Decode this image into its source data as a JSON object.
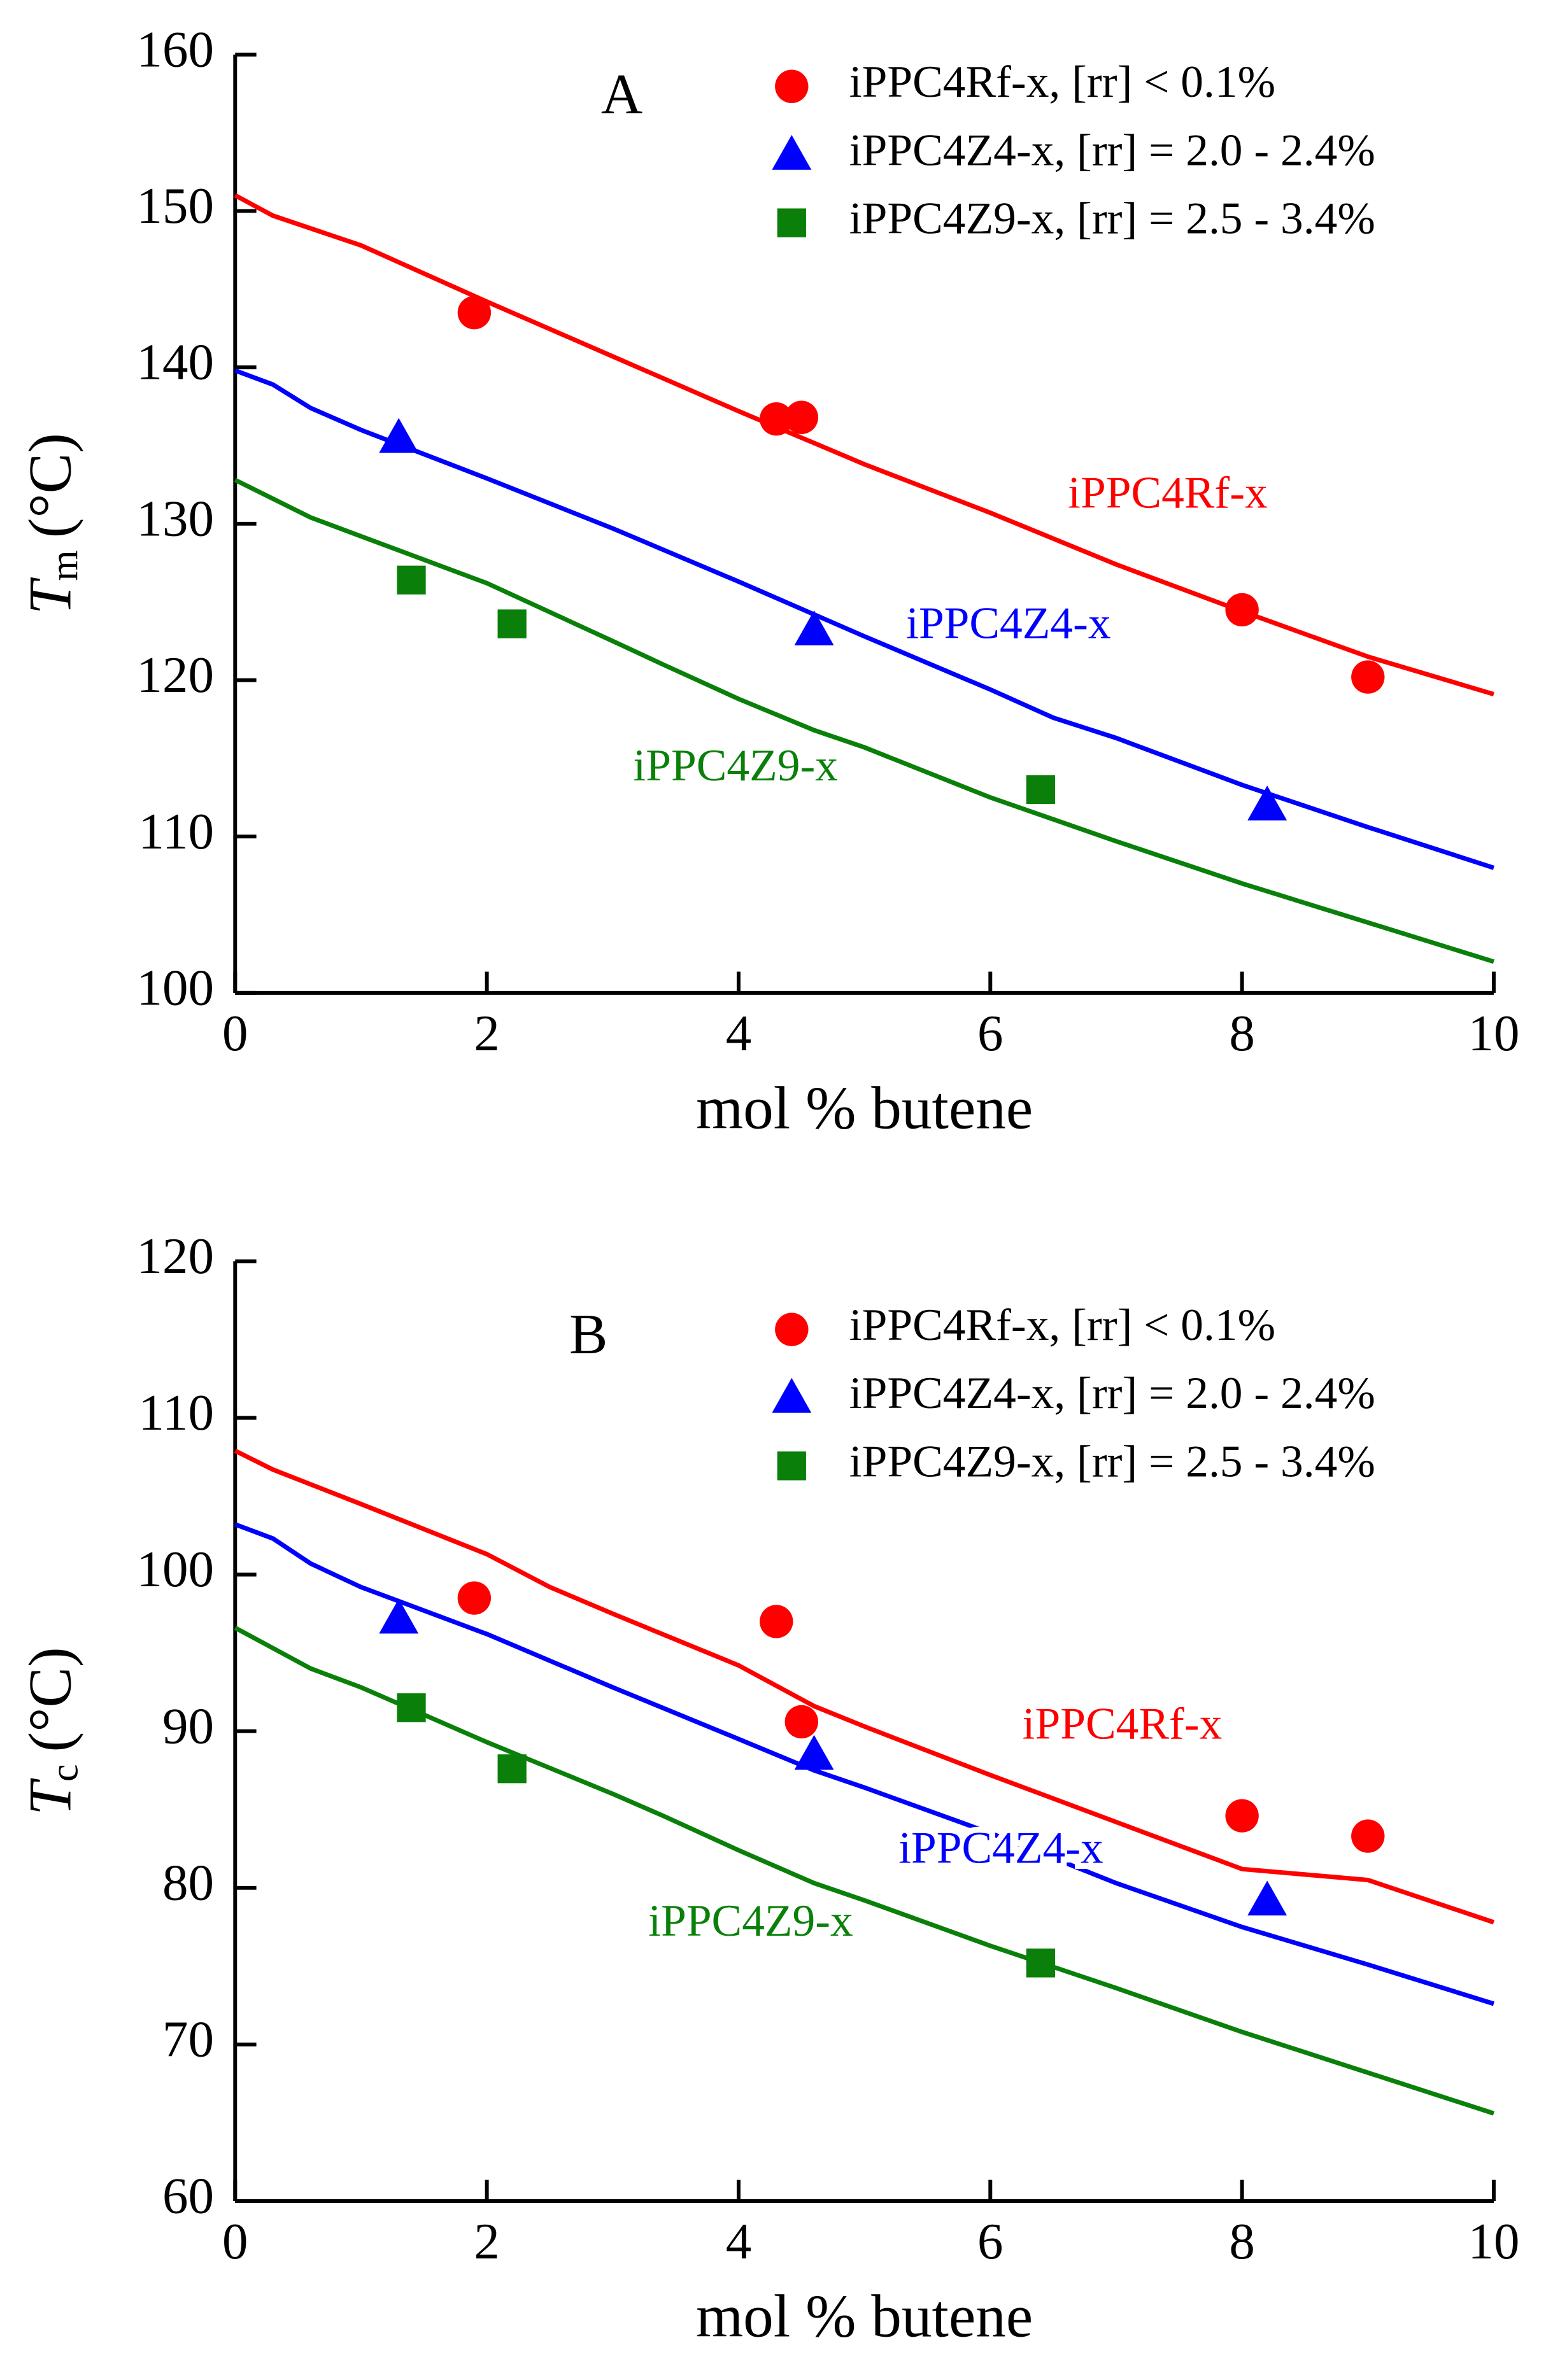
{
  "chart_data": [
    {
      "type": "scatter",
      "panel_label": "A",
      "xlabel": "mol % butene",
      "ylabel": "T",
      "ylabel_subscript": "m",
      "ylabel_unit": "(°C)",
      "xlim": [
        0,
        10
      ],
      "xticks": [
        0,
        2,
        4,
        6,
        8,
        10
      ],
      "ylim": [
        100,
        160
      ],
      "yticks": [
        100,
        110,
        120,
        130,
        140,
        150,
        160
      ],
      "legend": "top-right",
      "series": [
        {
          "name": "iPPC4Rf-x, [rr] < 0.1%",
          "color": "#ff0000",
          "marker": "circle",
          "x": [
            1.9,
            4.3,
            4.5,
            8.0,
            9.0
          ],
          "values": [
            143.5,
            136.7,
            136.8,
            124.5,
            120.2
          ]
        },
        {
          "name": "iPPC4Z4-x, [rr] = 2.0 - 2.4%",
          "color": "#0000ff",
          "marker": "triangle",
          "x": [
            1.3,
            4.6,
            8.2
          ],
          "values": [
            135.5,
            123.2,
            112
          ]
        },
        {
          "name": "iPPC4Z9-x, [rr] = 2.5 - 3.4%",
          "color": "#0a800a",
          "marker": "square",
          "x": [
            1.4,
            2.2,
            6.4
          ],
          "values": [
            126.4,
            123.6,
            113
          ]
        }
      ],
      "fit_lines": [
        {
          "label": "iPPC4Rf-x",
          "color": "#ff0000",
          "x": [
            0,
            0.3,
            1,
            2,
            3,
            4,
            5,
            6,
            7,
            8,
            9,
            10
          ],
          "values": [
            151,
            149.7,
            147.8,
            144.2,
            140.7,
            137.2,
            133.8,
            130.7,
            127.4,
            124.4,
            121.5,
            119.1
          ]
        },
        {
          "label": "iPPC4Z4-x",
          "color": "#0000ff",
          "x": [
            0,
            0.3,
            0.6,
            1,
            2,
            3,
            4,
            5,
            6,
            6.5,
            7,
            8,
            9,
            10
          ],
          "values": [
            139.8,
            138.9,
            137.4,
            136,
            132.9,
            129.7,
            126.3,
            122.8,
            119.4,
            117.6,
            116.3,
            113.3,
            110.6,
            108
          ]
        },
        {
          "label": "iPPC4Z9-x",
          "color": "#0a800a",
          "x": [
            0,
            0.6,
            1,
            2,
            3,
            3.4,
            4,
            4.6,
            5,
            6,
            7,
            8,
            9,
            10
          ],
          "values": [
            132.8,
            130.4,
            129.2,
            126.2,
            122.5,
            121,
            118.8,
            116.8,
            115.7,
            112.5,
            109.7,
            107,
            104.5,
            102
          ]
        }
      ]
    },
    {
      "type": "scatter",
      "panel_label": "B",
      "xlabel": "mol % butene",
      "ylabel": "T",
      "ylabel_subscript": "c",
      "ylabel_unit": "(°C)",
      "xlim": [
        0,
        10
      ],
      "xticks": [
        0,
        2,
        4,
        6,
        8,
        10
      ],
      "ylim": [
        60,
        120
      ],
      "yticks": [
        60,
        70,
        80,
        90,
        100,
        110,
        120
      ],
      "legend": "top-right",
      "series": [
        {
          "name": "iPPC4Rf-x, [rr] < 0.1%",
          "color": "#ff0000",
          "marker": "circle",
          "x": [
            1.9,
            4.3,
            4.5,
            8.0,
            9.0
          ],
          "values": [
            98.5,
            97,
            90.6,
            84.6,
            83.3
          ]
        },
        {
          "name": "iPPC4Z4-x, [rr] = 2.0 - 2.4%",
          "color": "#0000ff",
          "marker": "triangle",
          "x": [
            1.3,
            4.6,
            8.2
          ],
          "values": [
            97.2,
            88.5,
            79.2
          ]
        },
        {
          "name": "iPPC4Z9-x, [rr] = 2.5 - 3.4%",
          "color": "#0a800a",
          "marker": "square",
          "x": [
            1.4,
            2.2,
            6.4
          ],
          "values": [
            91.5,
            87.6,
            75.2
          ]
        }
      ],
      "fit_lines": [
        {
          "label": "iPPC4Rf-x",
          "color": "#ff0000",
          "x": [
            0,
            0.3,
            1,
            2,
            2.5,
            3,
            4,
            4.6,
            5,
            6,
            7,
            8,
            9,
            10
          ],
          "values": [
            107.9,
            106.7,
            104.5,
            101.3,
            99.2,
            97.5,
            94.2,
            91.6,
            90.3,
            87.2,
            84.2,
            81.2,
            80.5,
            77.8
          ]
        },
        {
          "label": "iPPC4Z4-x",
          "color": "#0000ff",
          "x": [
            0,
            0.3,
            0.6,
            1,
            2,
            3,
            4,
            4.6,
            5,
            6,
            7,
            8,
            9,
            10
          ],
          "values": [
            103.2,
            102.3,
            100.7,
            99.2,
            96.2,
            92.8,
            89.5,
            87.5,
            86.4,
            83.5,
            80.3,
            77.5,
            75.1,
            72.6
          ]
        },
        {
          "label": "iPPC4Z9-x",
          "color": "#0a800a",
          "x": [
            0,
            0.6,
            1,
            2,
            3,
            3.4,
            4,
            4.6,
            5,
            6,
            7,
            8,
            9,
            10
          ],
          "values": [
            96.6,
            94,
            92.8,
            89.3,
            86,
            84.6,
            82.4,
            80.3,
            79.2,
            76.3,
            73.6,
            70.8,
            68.2,
            65.6
          ]
        }
      ]
    }
  ]
}
